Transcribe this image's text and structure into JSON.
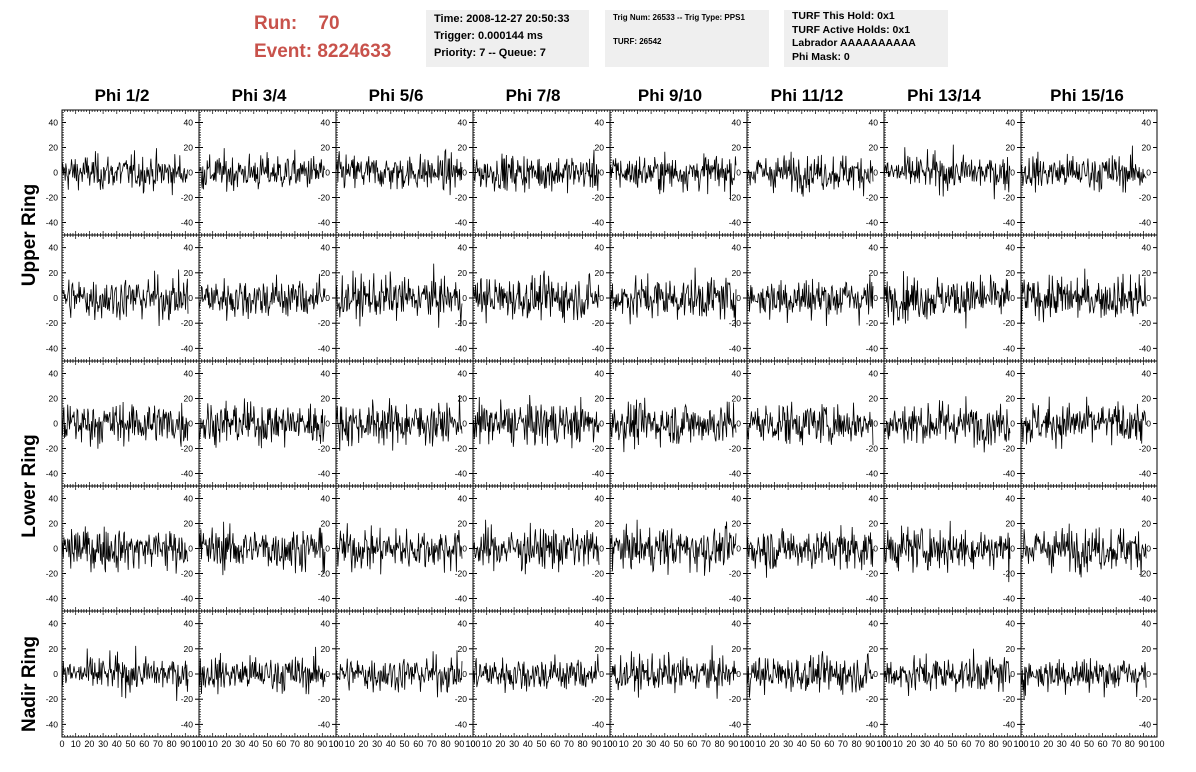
{
  "header": {
    "run_label": "Run:",
    "run_value": "70",
    "event_label": "Event:",
    "event_value": "8224633"
  },
  "info_box_1": {
    "time": "Time: 2008-12-27 20:50:33",
    "trigger": "Trigger: 0.000144 ms",
    "priority": "Priority: 7 -- Queue: 7"
  },
  "info_box_2": {
    "trig": "Trig Num: 26533 -- Trig Type: PPS1",
    "turf": "TURF: 26542"
  },
  "info_box_3": {
    "hold": "TURF This Hold: 0x1",
    "active": "TURF Active Holds: 0x1",
    "labrador": "Labrador AAAAAAAAAA",
    "phimask": "Phi Mask: 0"
  },
  "phi_columns": [
    "Phi 1/2",
    "Phi 3/4",
    "Phi 5/6",
    "Phi 7/8",
    "Phi 9/10",
    "Phi 11/12",
    "Phi 13/14",
    "Phi 15/16"
  ],
  "rings": [
    "Upper Ring",
    "Lower Ring",
    "Nadir Ring"
  ],
  "chart_data": {
    "type": "line",
    "rows": 5,
    "columns": 8,
    "xlim": [
      0,
      100
    ],
    "ylim": [
      -50,
      50
    ],
    "x_ticks": [
      "0",
      "10",
      "20",
      "30",
      "40",
      "50",
      "60",
      "70",
      "80",
      "90",
      "100"
    ],
    "y_ticks": [
      "-40",
      "-20",
      "0",
      "20",
      "40"
    ],
    "axis_color": "#000000",
    "trace_color": "#000000"
  },
  "colors": {
    "run_event_text": "#c8524b",
    "info_box_bg": "#efefef"
  }
}
